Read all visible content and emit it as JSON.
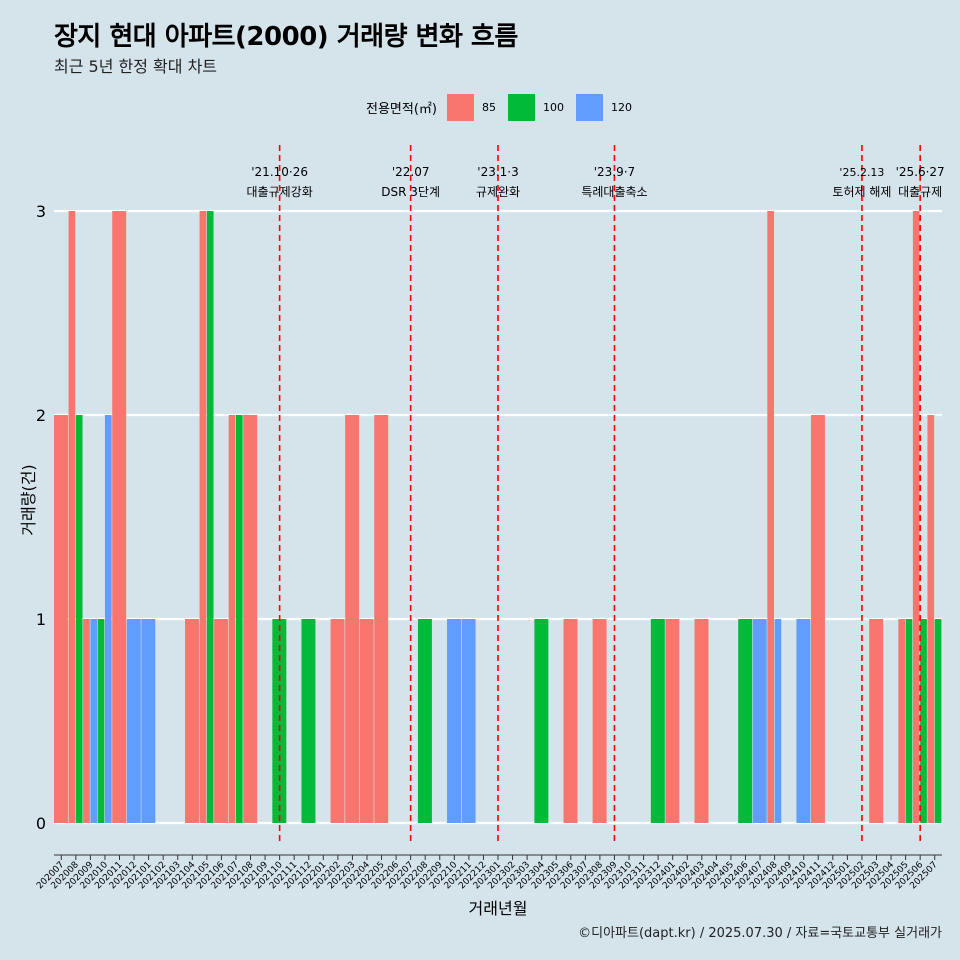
{
  "title": "장지 현대 아파트(2000) 거래량 변화 흐름",
  "subtitle": "최근 5년 한정 확대 차트",
  "caption": "©디아파트(dapt.kr) / 2025.07.30 / 자료=국토교통부 실거래가",
  "legend": {
    "title": "전용면적(㎡)",
    "items": [
      {
        "label": "85",
        "color": "#f8766d"
      },
      {
        "label": "100",
        "color": "#00ba38"
      },
      {
        "label": "120",
        "color": "#619cff"
      }
    ]
  },
  "chart_data": {
    "type": "bar",
    "xlabel": "거래년월",
    "ylabel": "거래량(건)",
    "ylim": [
      0,
      3
    ],
    "yticks": [
      0,
      1,
      2,
      3
    ],
    "categories": [
      "202007",
      "202008",
      "202009",
      "202010",
      "202011",
      "202012",
      "202101",
      "202102",
      "202103",
      "202104",
      "202105",
      "202106",
      "202107",
      "202108",
      "202109",
      "202110",
      "202111",
      "202112",
      "202201",
      "202202",
      "202203",
      "202204",
      "202205",
      "202206",
      "202207",
      "202208",
      "202209",
      "202210",
      "202211",
      "202212",
      "202301",
      "202302",
      "202303",
      "202304",
      "202305",
      "202306",
      "202307",
      "202308",
      "202309",
      "202310",
      "202311",
      "202312",
      "202401",
      "202402",
      "202403",
      "202404",
      "202405",
      "202406",
      "202407",
      "202408",
      "202409",
      "202410",
      "202411",
      "202412",
      "202501",
      "202502",
      "202503",
      "202504",
      "202505",
      "202506",
      "202507"
    ],
    "series": [
      {
        "name": "85",
        "color": "#f8766d",
        "values": [
          2,
          3,
          1,
          0,
          3,
          0,
          0,
          0,
          0,
          1,
          3,
          1,
          2,
          2,
          0,
          0,
          0,
          0,
          0,
          1,
          2,
          1,
          2,
          0,
          0,
          0,
          0,
          0,
          0,
          0,
          0,
          0,
          0,
          0,
          0,
          1,
          0,
          1,
          0,
          0,
          0,
          0,
          1,
          0,
          1,
          0,
          0,
          0,
          0,
          3,
          0,
          0,
          2,
          0,
          0,
          0,
          1,
          0,
          1,
          3,
          2
        ]
      },
      {
        "name": "100",
        "color": "#00ba38",
        "values": [
          0,
          2,
          0,
          1,
          0,
          0,
          0,
          0,
          0,
          0,
          3,
          0,
          2,
          0,
          0,
          1,
          0,
          1,
          0,
          0,
          0,
          0,
          0,
          0,
          0,
          1,
          0,
          0,
          0,
          0,
          0,
          0,
          0,
          1,
          0,
          0,
          0,
          0,
          0,
          0,
          0,
          1,
          0,
          0,
          0,
          0,
          0,
          1,
          0,
          0,
          0,
          0,
          0,
          0,
          0,
          0,
          0,
          0,
          1,
          1,
          1
        ]
      },
      {
        "name": "120",
        "color": "#619cff",
        "values": [
          0,
          0,
          1,
          2,
          0,
          1,
          1,
          0,
          0,
          0,
          0,
          0,
          0,
          0,
          0,
          0,
          0,
          0,
          0,
          0,
          0,
          0,
          0,
          0,
          0,
          0,
          0,
          1,
          1,
          0,
          0,
          0,
          0,
          0,
          0,
          0,
          0,
          0,
          0,
          0,
          0,
          0,
          0,
          0,
          0,
          0,
          0,
          0,
          1,
          1,
          0,
          1,
          0,
          0,
          0,
          0,
          0,
          0,
          0,
          0,
          0
        ]
      }
    ],
    "annotations": [
      {
        "date": "202110",
        "line1": "'21.10·26",
        "line2": "대출규제강화"
      },
      {
        "date": "202207",
        "line1": "'22.07",
        "line2": "DSR 3단계"
      },
      {
        "date": "202301",
        "line1": "'23.1·3",
        "line2": "규제완화"
      },
      {
        "date": "202309",
        "line1": "'23.9·7",
        "line2": "특례대출축소"
      },
      {
        "date": "202502",
        "line1": "'25.2.13",
        "line2": "토허제 해제"
      },
      {
        "date": "202506",
        "line1": "'25.6·27",
        "line2": "대출규제"
      }
    ]
  }
}
